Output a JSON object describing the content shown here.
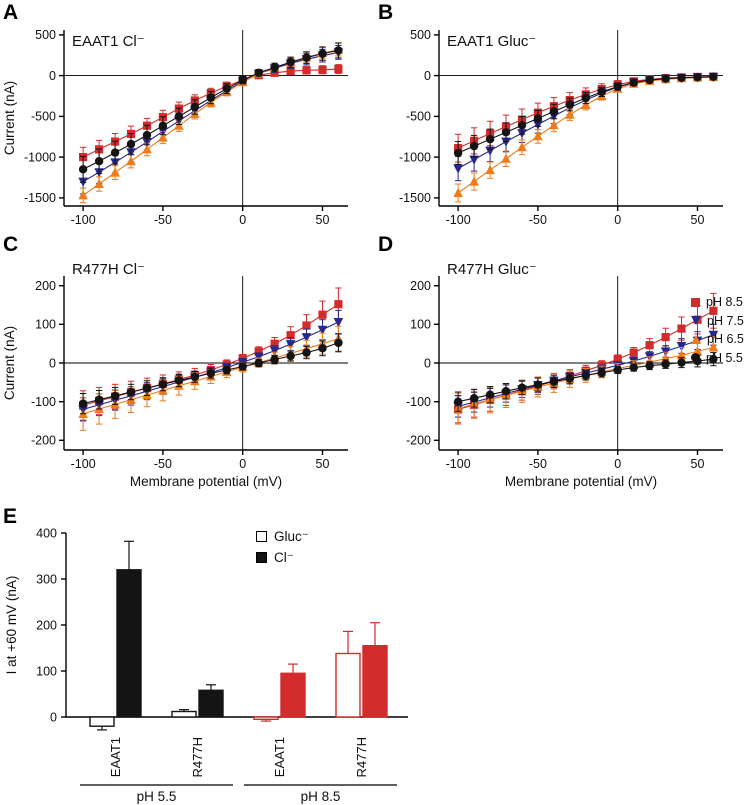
{
  "letters": [
    "A",
    "B",
    "C",
    "D",
    "E"
  ],
  "colors": {
    "red": "#d22c2c",
    "blue": "#28288c",
    "orange": "#ef7c1a",
    "black": "#141414"
  },
  "legend_iv": {
    "items": [
      {
        "label": "pH 8.5",
        "marker": "square",
        "color": "red"
      },
      {
        "label": "pH 7.5",
        "marker": "triangle-down",
        "color": "blue"
      },
      {
        "label": "pH 6.5",
        "marker": "triangle-up",
        "color": "orange"
      },
      {
        "label": "pH 5.5",
        "marker": "circle",
        "color": "black"
      }
    ]
  },
  "chart_data": [
    {
      "panel": "A",
      "type": "line",
      "title": "EAAT1 Cl⁻",
      "xlabel": "",
      "ylabel": "Current (nA)",
      "xlim": [
        -112,
        66
      ],
      "ylim": [
        -1600,
        560
      ],
      "xticks": [
        -100,
        -50,
        0,
        50
      ],
      "yticks": [
        500,
        0,
        -500,
        -1000,
        -1500
      ],
      "x": [
        -100,
        -90,
        -80,
        -70,
        -60,
        -50,
        -40,
        -30,
        -20,
        -10,
        0,
        10,
        20,
        30,
        40,
        50,
        60
      ],
      "series": [
        {
          "name": "pH 8.5",
          "marker": "square",
          "color": "red",
          "values": [
            -1000,
            -905,
            -810,
            -715,
            -615,
            -510,
            -405,
            -305,
            -215,
            -130,
            -55,
            5,
            35,
            55,
            65,
            72,
            80
          ],
          "err": [
            120,
            110,
            100,
            95,
            90,
            85,
            80,
            70,
            60,
            50,
            40,
            35,
            35,
            40,
            45,
            50,
            55
          ]
        },
        {
          "name": "pH 7.5",
          "marker": "triangle-down",
          "color": "blue",
          "values": [
            -1300,
            -1185,
            -1065,
            -940,
            -815,
            -685,
            -555,
            -430,
            -305,
            -185,
            -70,
            25,
            90,
            150,
            200,
            245,
            285
          ],
          "err": [
            150,
            140,
            130,
            120,
            110,
            100,
            90,
            80,
            70,
            60,
            45,
            40,
            50,
            60,
            70,
            78,
            85
          ]
        },
        {
          "name": "pH 6.5",
          "marker": "triangle-up",
          "color": "orange",
          "values": [
            -1470,
            -1330,
            -1190,
            -1050,
            -905,
            -760,
            -615,
            -470,
            -330,
            -200,
            -80,
            25,
            100,
            165,
            225,
            275,
            320
          ],
          "err": [
            90,
            88,
            85,
            82,
            78,
            74,
            70,
            62,
            55,
            48,
            38,
            35,
            45,
            55,
            62,
            70,
            78
          ]
        },
        {
          "name": "pH 5.5",
          "marker": "circle",
          "color": "black",
          "values": [
            -1150,
            -1050,
            -945,
            -840,
            -730,
            -615,
            -500,
            -385,
            -270,
            -160,
            -55,
            35,
            100,
            165,
            220,
            270,
            310
          ],
          "err": [
            160,
            150,
            140,
            130,
            120,
            110,
            100,
            88,
            75,
            60,
            45,
            40,
            52,
            62,
            72,
            82,
            92
          ]
        }
      ]
    },
    {
      "panel": "B",
      "type": "line",
      "title": "EAAT1 Gluc⁻",
      "xlabel": "",
      "ylabel": "",
      "xlim": [
        -112,
        66
      ],
      "ylim": [
        -1600,
        560
      ],
      "xticks": [
        -100,
        -50,
        0,
        50
      ],
      "yticks": [
        500,
        0,
        -500,
        -1000,
        -1500
      ],
      "x": [
        -100,
        -90,
        -80,
        -70,
        -60,
        -50,
        -40,
        -30,
        -20,
        -10,
        0,
        10,
        20,
        30,
        40,
        50,
        60
      ],
      "series": [
        {
          "name": "pH 8.5",
          "marker": "square",
          "color": "red",
          "values": [
            -890,
            -800,
            -710,
            -625,
            -540,
            -455,
            -375,
            -300,
            -230,
            -165,
            -110,
            -70,
            -45,
            -30,
            -22,
            -16,
            -12
          ],
          "err": [
            170,
            160,
            150,
            140,
            130,
            118,
            105,
            92,
            80,
            65,
            50,
            40,
            32,
            26,
            22,
            18,
            15
          ]
        },
        {
          "name": "pH 7.5",
          "marker": "triangle-down",
          "color": "blue",
          "values": [
            -1140,
            -1030,
            -920,
            -810,
            -705,
            -600,
            -495,
            -395,
            -300,
            -215,
            -140,
            -85,
            -55,
            -38,
            -28,
            -20,
            -15
          ],
          "err": [
            150,
            142,
            134,
            125,
            115,
            105,
            95,
            84,
            72,
            60,
            48,
            38,
            30,
            24,
            20,
            17,
            14
          ]
        },
        {
          "name": "pH 6.5",
          "marker": "triangle-up",
          "color": "orange",
          "values": [
            -1440,
            -1300,
            -1160,
            -1020,
            -880,
            -745,
            -610,
            -480,
            -360,
            -250,
            -160,
            -100,
            -65,
            -45,
            -32,
            -24,
            -18
          ],
          "err": [
            110,
            105,
            100,
            95,
            90,
            84,
            78,
            70,
            60,
            50,
            40,
            32,
            26,
            21,
            17,
            14,
            12
          ]
        },
        {
          "name": "pH 5.5",
          "marker": "circle",
          "color": "black",
          "values": [
            -950,
            -865,
            -780,
            -695,
            -610,
            -525,
            -440,
            -355,
            -275,
            -200,
            -135,
            -85,
            -55,
            -38,
            -27,
            -20,
            -14
          ],
          "err": [
            140,
            132,
            124,
            116,
            108,
            98,
            88,
            78,
            68,
            56,
            45,
            36,
            28,
            22,
            18,
            15,
            12
          ]
        }
      ]
    },
    {
      "panel": "C",
      "type": "line",
      "title": "R477H Cl⁻",
      "xlabel": "Membrane potential (mV)",
      "ylabel": "Current (nA)",
      "xlim": [
        -112,
        66
      ],
      "ylim": [
        -225,
        225
      ],
      "xticks": [
        -100,
        -50,
        0,
        50
      ],
      "yticks": [
        200,
        100,
        0,
        -100,
        -200
      ],
      "x": [
        -100,
        -90,
        -80,
        -70,
        -60,
        -50,
        -40,
        -30,
        -20,
        -10,
        0,
        10,
        20,
        30,
        40,
        50,
        60
      ],
      "series": [
        {
          "name": "pH 8.5",
          "marker": "square",
          "color": "red",
          "values": [
            -110,
            -98,
            -87,
            -76,
            -65,
            -54,
            -43,
            -31,
            -18,
            -4,
            12,
            30,
            50,
            72,
            97,
            125,
            152
          ],
          "err": [
            38,
            35,
            32,
            29,
            26,
            23,
            20,
            17,
            14,
            12,
            10,
            12,
            16,
            22,
            28,
            35,
            42
          ]
        },
        {
          "name": "pH 7.5",
          "marker": "triangle-down",
          "color": "blue",
          "values": [
            -120,
            -108,
            -96,
            -85,
            -73,
            -61,
            -49,
            -37,
            -25,
            -12,
            2,
            16,
            32,
            49,
            67,
            86,
            106
          ],
          "err": [
            30,
            28,
            26,
            24,
            22,
            20,
            18,
            16,
            13,
            11,
            9,
            10,
            13,
            17,
            21,
            26,
            30
          ]
        },
        {
          "name": "pH 6.5",
          "marker": "triangle-up",
          "color": "orange",
          "values": [
            -132,
            -119,
            -107,
            -95,
            -83,
            -71,
            -59,
            -47,
            -35,
            -23,
            -11,
            1,
            13,
            25,
            37,
            50,
            63
          ],
          "err": [
            42,
            39,
            36,
            33,
            30,
            27,
            24,
            21,
            18,
            15,
            12,
            12,
            15,
            18,
            22,
            27,
            32
          ]
        },
        {
          "name": "pH 5.5",
          "marker": "circle",
          "color": "black",
          "values": [
            -105,
            -95,
            -85,
            -75,
            -65,
            -55,
            -45,
            -36,
            -27,
            -18,
            -9,
            0,
            9,
            18,
            27,
            38,
            52
          ],
          "err": [
            26,
            24,
            22,
            20,
            19,
            17,
            16,
            14,
            12,
            10,
            9,
            9,
            11,
            13,
            16,
            19,
            23
          ]
        }
      ]
    },
    {
      "panel": "D",
      "type": "line",
      "title": "R477H Gluc⁻",
      "xlabel": "Membrane potential (mV)",
      "ylabel": "",
      "xlim": [
        -112,
        66
      ],
      "ylim": [
        -225,
        225
      ],
      "xticks": [
        -100,
        -50,
        0,
        50
      ],
      "yticks": [
        200,
        100,
        0,
        -100,
        -200
      ],
      "x": [
        -100,
        -90,
        -80,
        -70,
        -60,
        -50,
        -40,
        -30,
        -20,
        -10,
        0,
        10,
        20,
        30,
        40,
        50,
        60
      ],
      "series": [
        {
          "name": "pH 8.5",
          "marker": "square",
          "color": "red",
          "values": [
            -120,
            -108,
            -95,
            -83,
            -71,
            -59,
            -47,
            -34,
            -20,
            -6,
            10,
            27,
            46,
            67,
            89,
            112,
            135
          ],
          "err": [
            35,
            32,
            30,
            27,
            25,
            22,
            20,
            17,
            14,
            12,
            11,
            13,
            17,
            23,
            30,
            37,
            45
          ]
        },
        {
          "name": "pH 7.5",
          "marker": "triangle-down",
          "color": "blue",
          "values": [
            -112,
            -101,
            -90,
            -79,
            -68,
            -57,
            -46,
            -36,
            -26,
            -16,
            -6,
            5,
            17,
            30,
            44,
            58,
            73
          ],
          "err": [
            28,
            26,
            24,
            22,
            21,
            19,
            17,
            15,
            13,
            11,
            9,
            10,
            12,
            15,
            19,
            23,
            27
          ]
        },
        {
          "name": "pH 6.5",
          "marker": "triangle-up",
          "color": "orange",
          "values": [
            -118,
            -106,
            -95,
            -84,
            -73,
            -62,
            -52,
            -42,
            -32,
            -23,
            -14,
            -6,
            2,
            11,
            20,
            30,
            40
          ],
          "err": [
            40,
            37,
            34,
            31,
            29,
            26,
            24,
            21,
            18,
            15,
            13,
            12,
            14,
            17,
            20,
            24,
            28
          ]
        },
        {
          "name": "pH 5.5",
          "marker": "circle",
          "color": "black",
          "values": [
            -100,
            -91,
            -82,
            -73,
            -64,
            -56,
            -48,
            -40,
            -32,
            -25,
            -18,
            -12,
            -7,
            -3,
            1,
            5,
            10
          ],
          "err": [
            25,
            23,
            21,
            20,
            18,
            17,
            15,
            14,
            12,
            11,
            9,
            9,
            10,
            11,
            13,
            15,
            17
          ]
        }
      ]
    },
    {
      "panel": "E",
      "type": "bar",
      "ylabel": "I at +60 mV (nA)",
      "ylim": [
        0,
        400
      ],
      "yticks": [
        0,
        100,
        200,
        300,
        400
      ],
      "groups": [
        "pH 5.5",
        "pH 8.5"
      ],
      "bars": [
        {
          "group": "pH 5.5",
          "cell": "EAAT1",
          "anion": "Gluc⁻",
          "value": -20,
          "err": 8,
          "fill": "white",
          "stroke": "black"
        },
        {
          "group": "pH 5.5",
          "cell": "EAAT1",
          "anion": "Cl⁻",
          "value": 320,
          "err": 62,
          "fill": "black",
          "stroke": "black"
        },
        {
          "group": "pH 5.5",
          "cell": "R477H",
          "anion": "Gluc⁻",
          "value": 12,
          "err": 4,
          "fill": "white",
          "stroke": "black"
        },
        {
          "group": "pH 5.5",
          "cell": "R477H",
          "anion": "Cl⁻",
          "value": 58,
          "err": 12,
          "fill": "black",
          "stroke": "black"
        },
        {
          "group": "pH 8.5",
          "cell": "EAAT1",
          "anion": "Gluc⁻",
          "value": -5,
          "err": 4,
          "fill": "white",
          "stroke": "red"
        },
        {
          "group": "pH 8.5",
          "cell": "EAAT1",
          "anion": "Cl⁻",
          "value": 95,
          "err": 20,
          "fill": "red",
          "stroke": "red"
        },
        {
          "group": "pH 8.5",
          "cell": "R477H",
          "anion": "Gluc⁻",
          "value": 138,
          "err": 48,
          "fill": "white",
          "stroke": "red"
        },
        {
          "group": "pH 8.5",
          "cell": "R477H",
          "anion": "Cl⁻",
          "value": 155,
          "err": 50,
          "fill": "red",
          "stroke": "red"
        }
      ],
      "legend": [
        {
          "label": "Gluc⁻",
          "fill": "white"
        },
        {
          "label": "Cl⁻",
          "fill": "black"
        }
      ]
    }
  ]
}
